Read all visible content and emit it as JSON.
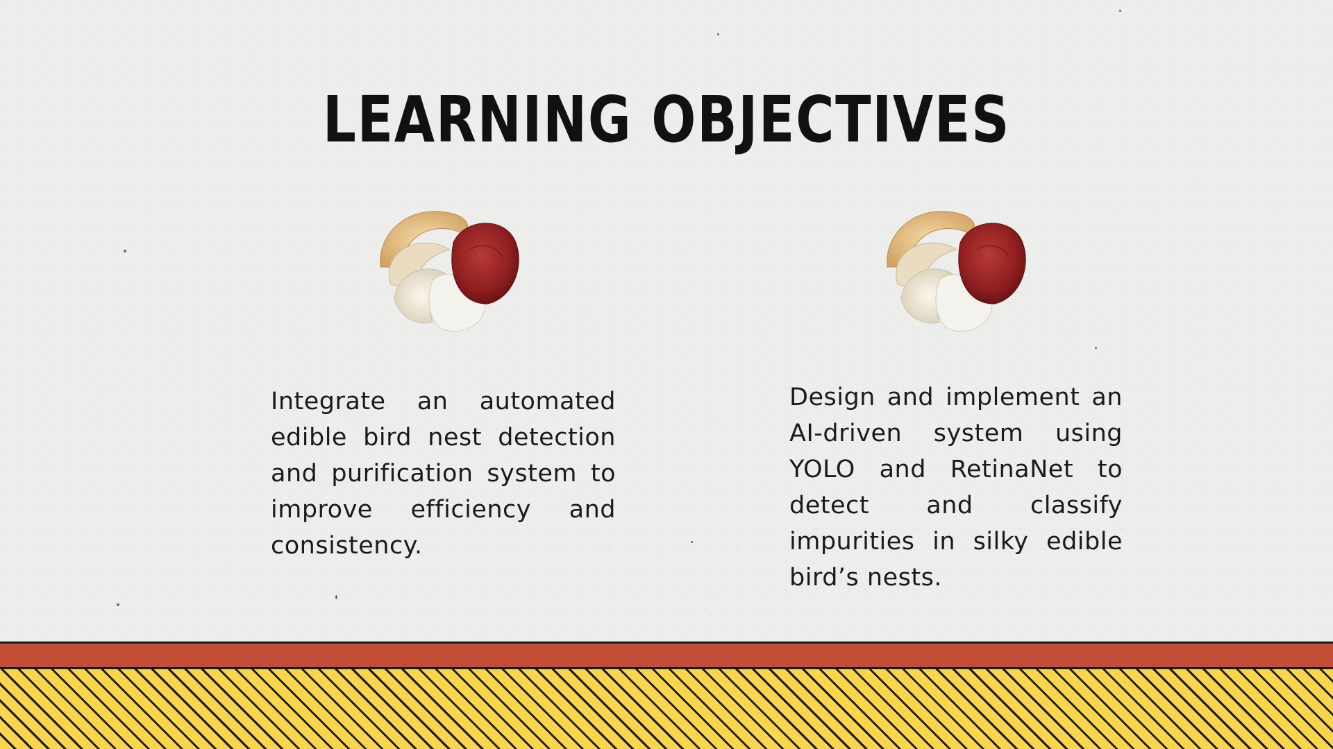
{
  "slide": {
    "title": "LEARNING OBJECTIVES"
  },
  "objectives": [
    {
      "text": "Integrate an automated edible bird nest detection and purification system to improve efficiency and consistency.",
      "icon": "bird-nest-image"
    },
    {
      "text": "Design and implement an AI-driven system using YOLO and RetinaNet to detect and classify impurities in silky edible bird’s nests.",
      "icon": "bird-nest-image"
    }
  ],
  "colors": {
    "background": "#ededec",
    "title": "#111111",
    "band": "#c34d39",
    "stripe_yellow": "#f7d64d",
    "stripe_black": "#1a1a1a"
  }
}
